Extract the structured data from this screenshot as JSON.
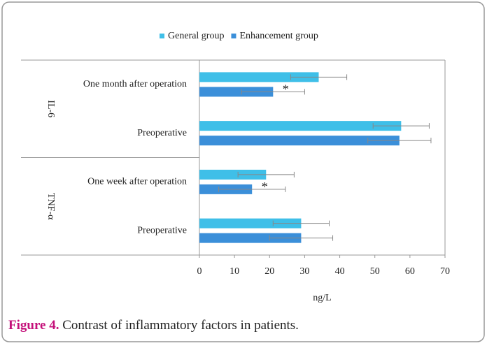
{
  "chart_data": {
    "type": "hbar",
    "legend": "top",
    "groups": [
      {
        "name": "IL-6",
        "categories": [
          "One month after operation",
          "Preoperative"
        ]
      },
      {
        "name": "TNF-α",
        "categories": [
          "One week after operation",
          "Preoperative"
        ]
      }
    ],
    "series": [
      {
        "name": "General group",
        "color": "#3fbfe8",
        "values": [
          34,
          57.5,
          19,
          29
        ],
        "errors": [
          8,
          8,
          8,
          8
        ]
      },
      {
        "name": "Enhancement group",
        "color": "#3b8fd9",
        "values": [
          21,
          57,
          15,
          29
        ],
        "errors": [
          9,
          9,
          9.5,
          9
        ]
      }
    ],
    "annotations": [
      "*",
      null,
      "*",
      null
    ],
    "xlabel": "ng/L",
    "xlim": [
      0,
      70
    ],
    "xticks": [
      0,
      10,
      20,
      30,
      40,
      50,
      60,
      70
    ]
  },
  "caption": {
    "label": "Figure 4.",
    "text": "Contrast of inflammatory factors in patients."
  }
}
